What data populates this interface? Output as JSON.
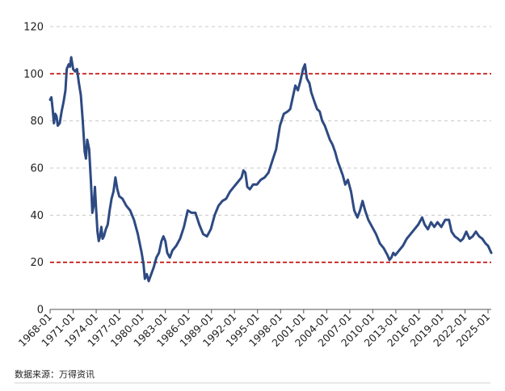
{
  "chart_data": {
    "type": "line",
    "title": "",
    "xlabel": "",
    "ylabel": "",
    "ylim": [
      0,
      120
    ],
    "yticks": [
      "0",
      "20",
      "40",
      "60",
      "80",
      "100",
      "120"
    ],
    "grid": true,
    "legend": "none",
    "x_range": [
      "1968-01",
      "2025-06"
    ],
    "x_ticks": [
      "1968-01",
      "1971-01",
      "1974-01",
      "1977-01",
      "1980-01",
      "1983-01",
      "1986-01",
      "1989-01",
      "1992-01",
      "1995-01",
      "1998-01",
      "2001-01",
      "2004-01",
      "2007-01",
      "2010-01",
      "2013-01",
      "2016-01",
      "2019-01",
      "2022-01",
      "2025-01"
    ],
    "reference_lines": [
      {
        "y": 100,
        "color": "#c00000"
      },
      {
        "y": 20,
        "color": "#c00000"
      }
    ],
    "series": [
      {
        "color": "#2e4a82",
        "points": [
          [
            "1968-01",
            89
          ],
          [
            "1968-03",
            90
          ],
          [
            "1968-05",
            85
          ],
          [
            "1968-07",
            79
          ],
          [
            "1968-09",
            83
          ],
          [
            "1968-11",
            82
          ],
          [
            "1969-01",
            78
          ],
          [
            "1969-04",
            79
          ],
          [
            "1969-07",
            84
          ],
          [
            "1969-10",
            88
          ],
          [
            "1970-01",
            93
          ],
          [
            "1970-03",
            102
          ],
          [
            "1970-06",
            104
          ],
          [
            "1970-08",
            103
          ],
          [
            "1970-10",
            107
          ],
          [
            "1971-01",
            102
          ],
          [
            "1971-04",
            101
          ],
          [
            "1971-07",
            102
          ],
          [
            "1971-10",
            96
          ],
          [
            "1972-01",
            91
          ],
          [
            "1972-04",
            80
          ],
          [
            "1972-07",
            67
          ],
          [
            "1972-09",
            64
          ],
          [
            "1972-11",
            72
          ],
          [
            "1973-02",
            68
          ],
          [
            "1973-05",
            53
          ],
          [
            "1973-07",
            41
          ],
          [
            "1973-09",
            44
          ],
          [
            "1973-11",
            52
          ],
          [
            "1974-01",
            42
          ],
          [
            "1974-03",
            33
          ],
          [
            "1974-05",
            29
          ],
          [
            "1974-07",
            31
          ],
          [
            "1974-09",
            35
          ],
          [
            "1974-11",
            30
          ],
          [
            "1975-01",
            31
          ],
          [
            "1975-04",
            34
          ],
          [
            "1975-07",
            36
          ],
          [
            "1975-10",
            42
          ],
          [
            "1976-01",
            47
          ],
          [
            "1976-04",
            50
          ],
          [
            "1976-07",
            56
          ],
          [
            "1976-10",
            51
          ],
          [
            "1977-01",
            48
          ],
          [
            "1977-06",
            47
          ],
          [
            "1977-12",
            44
          ],
          [
            "1978-06",
            42
          ],
          [
            "1978-12",
            38
          ],
          [
            "1979-06",
            32
          ],
          [
            "1979-12",
            24
          ],
          [
            "1980-03",
            19
          ],
          [
            "1980-05",
            13
          ],
          [
            "1980-08",
            15
          ],
          [
            "1980-11",
            12
          ],
          [
            "1981-03",
            15
          ],
          [
            "1981-07",
            18
          ],
          [
            "1981-11",
            22
          ],
          [
            "1982-03",
            24
          ],
          [
            "1982-07",
            29
          ],
          [
            "1982-10",
            31
          ],
          [
            "1983-01",
            29
          ],
          [
            "1983-04",
            24
          ],
          [
            "1983-08",
            22
          ],
          [
            "1983-12",
            25
          ],
          [
            "1984-06",
            27
          ],
          [
            "1984-12",
            30
          ],
          [
            "1985-06",
            35
          ],
          [
            "1985-12",
            42
          ],
          [
            "1986-06",
            41
          ],
          [
            "1986-12",
            41
          ],
          [
            "1987-06",
            36
          ],
          [
            "1987-12",
            32
          ],
          [
            "1988-06",
            31
          ],
          [
            "1988-12",
            34
          ],
          [
            "1989-06",
            40
          ],
          [
            "1989-12",
            44
          ],
          [
            "1990-06",
            46
          ],
          [
            "1990-12",
            47
          ],
          [
            "1991-06",
            50
          ],
          [
            "1991-12",
            52
          ],
          [
            "1992-06",
            54
          ],
          [
            "1992-12",
            56
          ],
          [
            "1993-03",
            59
          ],
          [
            "1993-06",
            58
          ],
          [
            "1993-09",
            52
          ],
          [
            "1994-01",
            51
          ],
          [
            "1994-06",
            53
          ],
          [
            "1994-12",
            53
          ],
          [
            "1995-06",
            55
          ],
          [
            "1995-12",
            56
          ],
          [
            "1996-06",
            58
          ],
          [
            "1996-12",
            63
          ],
          [
            "1997-06",
            68
          ],
          [
            "1997-12",
            78
          ],
          [
            "1998-06",
            83
          ],
          [
            "1998-12",
            84
          ],
          [
            "1999-04",
            85
          ],
          [
            "1999-08",
            90
          ],
          [
            "1999-12",
            95
          ],
          [
            "2000-04",
            93
          ],
          [
            "2000-08",
            97
          ],
          [
            "2000-12",
            102
          ],
          [
            "2001-03",
            104
          ],
          [
            "2001-06",
            98
          ],
          [
            "2001-10",
            96
          ],
          [
            "2002-01",
            92
          ],
          [
            "2002-06",
            88
          ],
          [
            "2002-10",
            85
          ],
          [
            "2003-02",
            84
          ],
          [
            "2003-06",
            80
          ],
          [
            "2003-10",
            78
          ],
          [
            "2004-02",
            75
          ],
          [
            "2004-06",
            72
          ],
          [
            "2004-10",
            70
          ],
          [
            "2005-02",
            67
          ],
          [
            "2005-06",
            63
          ],
          [
            "2005-10",
            60
          ],
          [
            "2006-02",
            57
          ],
          [
            "2006-06",
            53
          ],
          [
            "2006-10",
            55
          ],
          [
            "2007-03",
            50
          ],
          [
            "2007-08",
            42
          ],
          [
            "2008-01",
            39
          ],
          [
            "2008-05",
            42
          ],
          [
            "2008-09",
            46
          ],
          [
            "2009-01",
            42
          ],
          [
            "2009-06",
            38
          ],
          [
            "2009-12",
            35
          ],
          [
            "2010-06",
            32
          ],
          [
            "2010-12",
            28
          ],
          [
            "2011-06",
            26
          ],
          [
            "2011-12",
            23
          ],
          [
            "2012-03",
            21
          ],
          [
            "2012-06",
            22
          ],
          [
            "2012-09",
            24
          ],
          [
            "2012-12",
            23
          ],
          [
            "2013-06",
            25
          ],
          [
            "2013-12",
            27
          ],
          [
            "2014-06",
            30
          ],
          [
            "2014-12",
            32
          ],
          [
            "2015-06",
            34
          ],
          [
            "2015-12",
            36
          ],
          [
            "2016-06",
            39
          ],
          [
            "2016-10",
            36
          ],
          [
            "2017-03",
            34
          ],
          [
            "2017-08",
            37
          ],
          [
            "2018-01",
            35
          ],
          [
            "2018-06",
            37
          ],
          [
            "2018-12",
            35
          ],
          [
            "2019-06",
            38
          ],
          [
            "2019-12",
            38
          ],
          [
            "2020-04",
            33
          ],
          [
            "2020-09",
            31
          ],
          [
            "2021-02",
            30
          ],
          [
            "2021-06",
            29
          ],
          [
            "2021-10",
            30
          ],
          [
            "2022-03",
            33
          ],
          [
            "2022-08",
            30
          ],
          [
            "2023-01",
            31
          ],
          [
            "2023-06",
            33
          ],
          [
            "2023-11",
            31
          ],
          [
            "2024-04",
            30
          ],
          [
            "2024-09",
            28
          ],
          [
            "2025-01",
            27
          ],
          [
            "2025-06",
            24
          ]
        ]
      }
    ]
  },
  "footer": {
    "source": "数据来源：万得资讯"
  }
}
